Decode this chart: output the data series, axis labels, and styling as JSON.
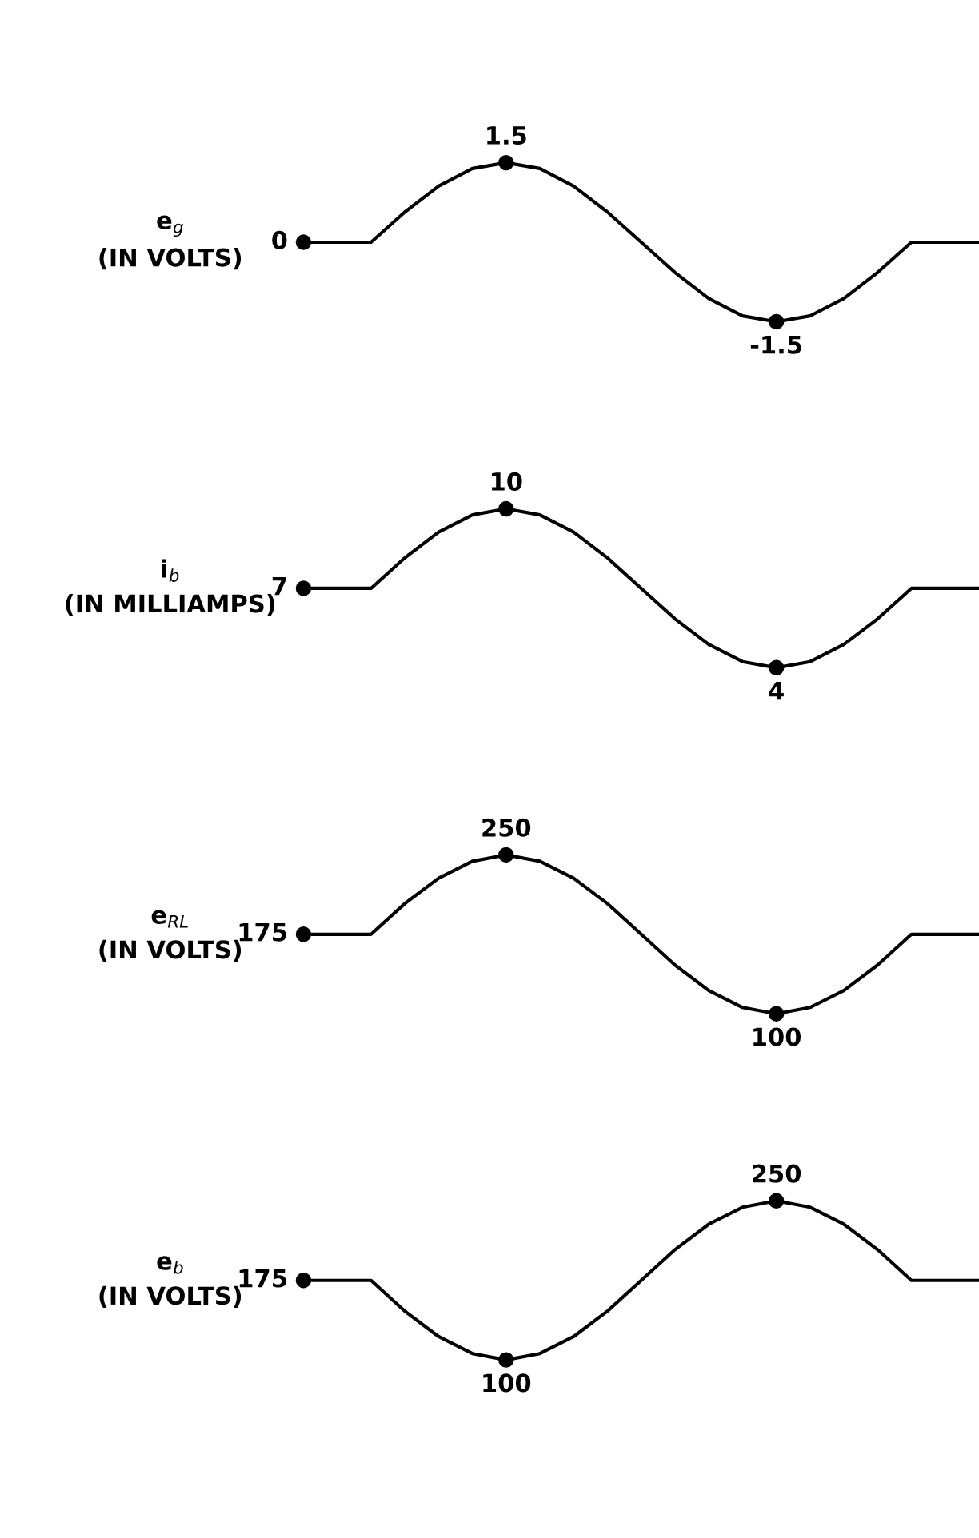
{
  "chart_data": [
    {
      "type": "line",
      "ylabel": "e$_{g}$\n(IN VOLTS)",
      "categories": [
        null,
        null,
        null,
        null,
        null,
        null,
        null,
        null,
        null,
        null,
        null,
        null,
        null,
        null,
        null,
        null,
        null,
        null,
        null,
        null,
        null
      ],
      "tick_labels": false,
      "line_style": "solid",
      "series": [
        {
          "color": "#000000",
          "values": [
            0,
            0,
            0,
            0.57,
            1.06,
            1.39,
            1.5,
            1.39,
            1.06,
            0.57,
            0,
            -0.57,
            -1.06,
            -1.39,
            -1.5,
            -1.39,
            -1.06,
            -0.57,
            0,
            0,
            0
          ],
          "value_labels": [
            "0",
            null,
            null,
            null,
            null,
            null,
            "1.5",
            null,
            null,
            null,
            null,
            null,
            null,
            null,
            "-1.5",
            null,
            null,
            null,
            null,
            null,
            null
          ]
        }
      ]
    },
    {
      "type": "line",
      "ylabel": "i$_{b}$\n(IN MILLIAMPS)",
      "categories": [
        null,
        null,
        null,
        null,
        null,
        null,
        null,
        null,
        null,
        null,
        null,
        null,
        null,
        null,
        null,
        null,
        null,
        null,
        null,
        null,
        null
      ],
      "tick_labels": false,
      "line_style": "solid",
      "series": [
        {
          "color": "#000000",
          "values": [
            7,
            7,
            7,
            8.15,
            9.12,
            9.77,
            10,
            9.77,
            9.12,
            8.15,
            7,
            5.85,
            4.88,
            4.23,
            4,
            4.23,
            4.88,
            5.85,
            7,
            7,
            7
          ],
          "value_labels": [
            "7",
            null,
            null,
            null,
            null,
            null,
            "10",
            null,
            null,
            null,
            null,
            null,
            null,
            null,
            "4",
            null,
            null,
            null,
            null,
            null,
            null
          ]
        }
      ]
    },
    {
      "type": "line",
      "ylabel": "e$_{RL}$\n(IN VOLTS)",
      "categories": [
        null,
        null,
        null,
        null,
        null,
        null,
        null,
        null,
        null,
        null,
        null,
        null,
        null,
        null,
        null,
        null,
        null,
        null,
        null,
        null,
        null
      ],
      "tick_labels": false,
      "line_style": "solid",
      "series": [
        {
          "color": "#000000",
          "values": [
            175,
            175,
            175,
            204,
            228,
            244,
            250,
            244,
            228,
            204,
            175,
            146,
            122,
            106,
            100,
            106,
            122,
            146,
            175,
            175,
            175
          ],
          "value_labels": [
            "175",
            null,
            null,
            null,
            null,
            null,
            "250",
            null,
            null,
            null,
            null,
            null,
            null,
            null,
            "100",
            null,
            null,
            null,
            null,
            null,
            null
          ]
        }
      ]
    },
    {
      "type": "line",
      "ylabel": "e$_{b}$\n(IN VOLTS)",
      "categories": [
        null,
        null,
        null,
        null,
        null,
        null,
        null,
        null,
        null,
        null,
        null,
        null,
        null,
        null,
        null,
        null,
        null,
        null,
        null,
        null,
        null
      ],
      "tick_labels": false,
      "line_style": "solid",
      "series": [
        {
          "color": "#000000",
          "values": [
            175,
            175,
            175,
            146,
            122,
            106,
            100,
            106,
            122,
            146,
            175,
            204,
            228,
            244,
            250,
            244,
            228,
            204,
            175,
            175,
            175
          ],
          "value_labels": [
            "175",
            null,
            null,
            null,
            null,
            null,
            "100",
            null,
            null,
            null,
            null,
            null,
            null,
            null,
            "250",
            null,
            null,
            null,
            null,
            null,
            null
          ]
        }
      ]
    }
  ]
}
